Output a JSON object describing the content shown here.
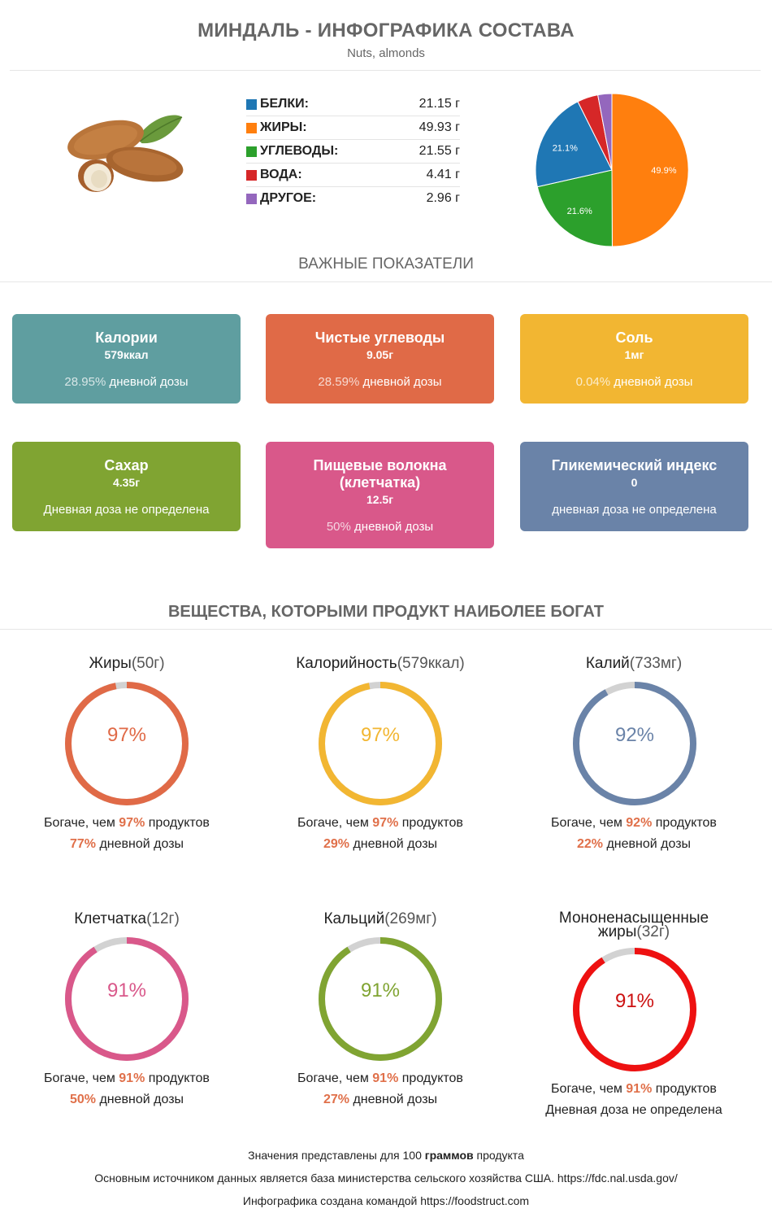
{
  "header": {
    "title": "МИНДАЛЬ - ИНФОГРАФИКА СОСТАВА",
    "subtitle": "Nuts, almonds"
  },
  "composition": [
    {
      "name": "БЕЛКИ:",
      "value": "21.15 г",
      "color": "#1f77b4"
    },
    {
      "name": "ЖИРЫ:",
      "value": "49.93 г",
      "color": "#ff7f0e"
    },
    {
      "name": "УГЛЕВОДЫ:",
      "value": "21.55 г",
      "color": "#2ca02c"
    },
    {
      "name": "ВОДА:",
      "value": "4.41 г",
      "color": "#d62728"
    },
    {
      "name": "ДРУГОЕ:",
      "value": "2.96 г",
      "color": "#9467bd"
    }
  ],
  "chart_data": {
    "type": "pie",
    "categories": [
      "БЕЛКИ",
      "ЖИРЫ",
      "УГЛЕВОДЫ",
      "ВОДА",
      "ДРУГОЕ"
    ],
    "values": [
      21.15,
      49.93,
      21.55,
      4.41,
      2.96
    ],
    "slice_labels": [
      "21.1%",
      "49.9%",
      "21.6%",
      "",
      ""
    ],
    "colors": [
      "#1f77b4",
      "#ff7f0e",
      "#2ca02c",
      "#d62728",
      "#9467bd"
    ]
  },
  "important_heading": "ВАЖНЫЕ ПОКАЗАТЕЛИ",
  "cards": [
    {
      "title": "Калории",
      "value": "579ккал",
      "dose_pct": "28.95%",
      "dose_text": "дневной дозы",
      "color": "#5f9ea0"
    },
    {
      "title": "Чистые углеводы",
      "value": "9.05г",
      "dose_pct": "28.59%",
      "dose_text": "дневной дозы",
      "color": "#e06a47"
    },
    {
      "title": "Соль",
      "value": "1мг",
      "dose_pct": "0.04%",
      "dose_text": "дневной дозы",
      "color": "#f2b632"
    },
    {
      "title": "Сахар",
      "value": "4.35г",
      "dose_pct": "",
      "dose_text": "Дневная доза не определена",
      "color": "#80a432"
    },
    {
      "title": "Пищевые волокна (клетчатка)",
      "value": "12.5г",
      "dose_pct": "50%",
      "dose_text": "дневной дозы",
      "color": "#d9588a"
    },
    {
      "title": "Гликемический индекс",
      "value": "0",
      "dose_pct": "",
      "dose_text": "дневная доза не определена",
      "color": "#6a83a8"
    }
  ],
  "rich_heading": "ВЕЩЕСТВА, КОТОРЫМИ ПРОДУКТ НАИБОЛЕЕ БОГАТ",
  "nutrients": [
    {
      "name": "Жиры",
      "amount": "(50г)",
      "percentile": 97,
      "pct_label": "97%",
      "richer_prefix": "Богаче, чем ",
      "richer_pct": "97%",
      "richer_suffix": " продуктов",
      "dose_pct": "77%",
      "dose_text": " дневной дозы",
      "color": "#e06a47"
    },
    {
      "name": "Калорийность",
      "amount": "(579ккал)",
      "percentile": 97,
      "pct_label": "97%",
      "richer_prefix": "Богаче, чем ",
      "richer_pct": "97%",
      "richer_suffix": " продуктов",
      "dose_pct": "29%",
      "dose_text": " дневной дозы",
      "color": "#f2b632"
    },
    {
      "name": "Калий",
      "amount": "(733мг)",
      "percentile": 92,
      "pct_label": "92%",
      "richer_prefix": "Богаче, чем ",
      "richer_pct": "92%",
      "richer_suffix": " продуктов",
      "dose_pct": "22%",
      "dose_text": " дневной дозы",
      "color": "#6a83a8"
    },
    {
      "name": "Клетчатка",
      "amount": "(12г)",
      "percentile": 91,
      "pct_label": "91%",
      "richer_prefix": "Богаче, чем ",
      "richer_pct": "91%",
      "richer_suffix": " продуктов",
      "dose_pct": "50%",
      "dose_text": " дневной дозы",
      "color": "#d9588a"
    },
    {
      "name": "Кальций",
      "amount": "(269мг)",
      "percentile": 91,
      "pct_label": "91%",
      "richer_prefix": "Богаче, чем ",
      "richer_pct": "91%",
      "richer_suffix": " продуктов",
      "dose_pct": "27%",
      "dose_text": " дневной дозы",
      "color": "#80a432"
    },
    {
      "name": "Мононенасыщенные жиры",
      "amount": "(32г)",
      "percentile": 91,
      "pct_label": "91%",
      "richer_prefix": "Богаче, чем ",
      "richer_pct": "91%",
      "richer_suffix": " продуктов",
      "dose_pct": "",
      "dose_text": "Дневная доза не определена",
      "color": "#ee1111"
    }
  ],
  "footer": {
    "line1_a": "Значения представлены для 100 ",
    "line1_b": "граммов",
    "line1_c": " продукта",
    "line2": "Основным источником данных является база министерства сельского хозяйства США. https://fdc.nal.usda.gov/",
    "line3": "Инфографика создана командой https://foodstruct.com"
  }
}
